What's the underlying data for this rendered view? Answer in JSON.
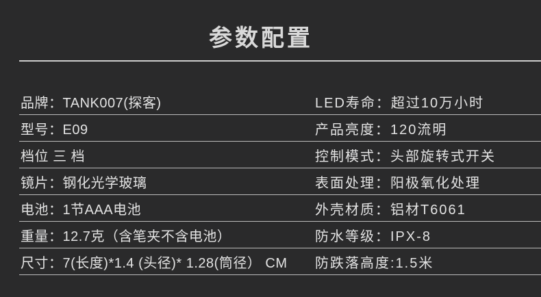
{
  "page": {
    "title": "参数配置",
    "colors": {
      "background": "#2a2a2b",
      "text": "#e3e3e3",
      "title_text": "#d9d9d9",
      "divider": "#cdcdcd",
      "row_border": "#bdbdbd"
    }
  },
  "specs": {
    "left": [
      {
        "label": "品牌：",
        "value": "TANK007(探客)"
      },
      {
        "label": "型号：",
        "value": "E09"
      },
      {
        "label": "档位 ",
        "value": "三 档"
      },
      {
        "label": "镜片：",
        "value": "钢化光学玻璃"
      },
      {
        "label": "电池：",
        "value": "1节AAA电池"
      },
      {
        "label": "重量：",
        "value": "12.7克（含笔夹不含电池）"
      },
      {
        "label": "尺寸：",
        "value": "7(长度)*1.4 (头径)* 1.28(筒径） CM"
      }
    ],
    "right": [
      {
        "label": "LED寿命：",
        "value": "超过10万小时"
      },
      {
        "label": "产品亮度：",
        "value": "120流明"
      },
      {
        "label": "控制模式：",
        "value": "头部旋转式开关"
      },
      {
        "label": "表面处理：",
        "value": "阳极氧化处理"
      },
      {
        "label": "外壳材质：",
        "value": "铝材T6061"
      },
      {
        "label": "防水等级：",
        "value": "IPX-8"
      },
      {
        "label": "防跌落高度:",
        "value": "1.5米"
      }
    ]
  }
}
